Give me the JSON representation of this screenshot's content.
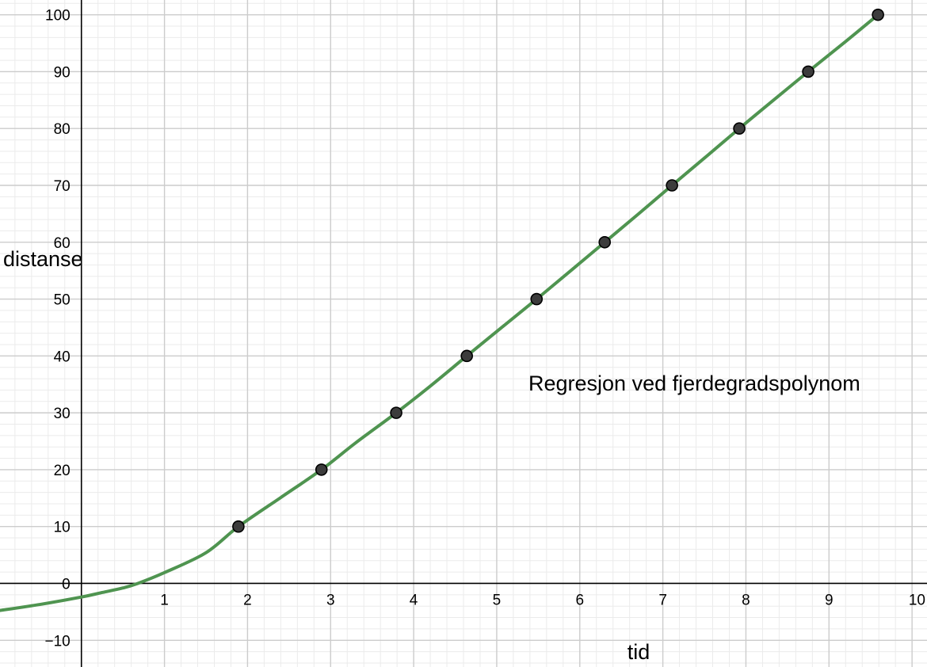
{
  "chart_data": {
    "type": "scatter",
    "title": "",
    "xlabel": "tid",
    "ylabel": "distanse",
    "xlim": [
      -0.98,
      10.18
    ],
    "ylim": [
      -14.7,
      102.6
    ],
    "grid": true,
    "x_ticks": [
      1,
      2,
      3,
      4,
      5,
      6,
      7,
      8,
      9,
      10
    ],
    "x_tick_labels": [
      "1",
      "2",
      "3",
      "4",
      "5",
      "6",
      "7",
      "8",
      "9",
      "10"
    ],
    "y_ticks": [
      -10,
      0,
      10,
      20,
      30,
      40,
      50,
      60,
      70,
      80,
      90,
      100
    ],
    "y_tick_labels": [
      "−10",
      "0",
      "10",
      "20",
      "30",
      "40",
      "50",
      "60",
      "70",
      "80",
      "90",
      "100"
    ],
    "annotation": "Regresjon ved fjerdegradspolynom",
    "series": [
      {
        "kind": "points",
        "x": [
          1.89,
          2.89,
          3.79,
          4.64,
          5.48,
          6.3,
          7.11,
          7.92,
          8.75,
          9.59
        ],
        "y": [
          10,
          20,
          30,
          40,
          50,
          60,
          70,
          80,
          90,
          100
        ],
        "color": "#3c3c3c"
      },
      {
        "kind": "curve",
        "x": [
          -1,
          -0.5,
          0,
          0.25,
          0.5,
          0.68,
          1.0,
          1.5,
          1.89,
          2.4,
          2.89,
          3.3,
          3.79,
          4.2,
          4.64,
          5.05,
          5.48,
          5.9,
          6.3,
          6.7,
          7.11,
          7.5,
          7.92,
          8.3,
          8.75,
          9.2,
          9.59
        ],
        "y": [
          -4.8,
          -3.7,
          -2.4,
          -1.6,
          -0.8,
          0,
          1.9,
          5.4,
          10,
          15.1,
          20,
          24.7,
          30,
          34.7,
          40,
          44.9,
          50,
          55.1,
          60,
          64.9,
          70,
          74.8,
          80,
          84.6,
          90,
          95.3,
          100
        ],
        "color": "#4f9450"
      }
    ],
    "colors": {
      "grid_major": "#cccccc",
      "grid_minor": "#ebebeb",
      "axis": "#000000",
      "curve": "#4f9450",
      "point_fill": "#3c3c3c",
      "point_stroke": "#000000"
    }
  }
}
